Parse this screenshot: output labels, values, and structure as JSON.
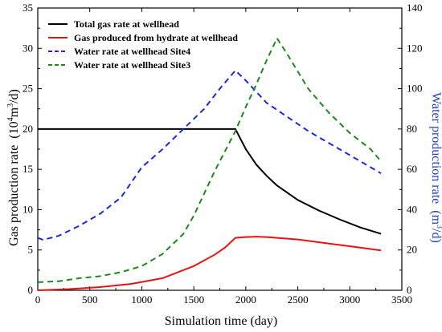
{
  "chart_data": {
    "type": "line",
    "xlabel": "Simulation time  (day)",
    "ylabel_left": "Gas production rate",
    "ylabel_left_unit_base": "(10",
    "ylabel_left_unit_exp": "4",
    "ylabel_left_unit_mid": "m",
    "ylabel_left_unit_exp2": "3",
    "ylabel_left_unit_end": "/d)",
    "ylabel_right": "Water production rate",
    "ylabel_right_unit_base": "(m",
    "ylabel_right_unit_exp": "3",
    "ylabel_right_unit_end": "/d)",
    "xlim": [
      0,
      3500
    ],
    "ylim_left": [
      0,
      35
    ],
    "ylim_right": [
      0,
      140
    ],
    "x_ticks": [
      0,
      500,
      1000,
      1500,
      2000,
      2500,
      3000,
      3500
    ],
    "y_left_ticks": [
      0,
      5,
      10,
      15,
      20,
      25,
      30,
      35
    ],
    "y_right_ticks": [
      0,
      20,
      40,
      60,
      80,
      100,
      120,
      140
    ],
    "legend_position": "top-left",
    "colors": {
      "axis_right_title": "#1f3dcc"
    },
    "series": [
      {
        "name": "Total gas rate at wellhead",
        "axis": "left",
        "color": "#000000",
        "dash": "solid",
        "points": [
          [
            0,
            20
          ],
          [
            500,
            20
          ],
          [
            1000,
            20
          ],
          [
            1500,
            20
          ],
          [
            1900,
            20
          ],
          [
            2000,
            17.5
          ],
          [
            2100,
            15.6
          ],
          [
            2200,
            14.2
          ],
          [
            2300,
            13.0
          ],
          [
            2500,
            11.2
          ],
          [
            2700,
            9.9
          ],
          [
            2900,
            8.8
          ],
          [
            3100,
            7.8
          ],
          [
            3300,
            7.0
          ]
        ]
      },
      {
        "name": "Gas produced from hydrate at wellhead",
        "axis": "left",
        "color": "#e8130f",
        "dash": "solid",
        "points": [
          [
            0,
            0
          ],
          [
            300,
            0.15
          ],
          [
            600,
            0.4
          ],
          [
            900,
            0.8
          ],
          [
            1200,
            1.5
          ],
          [
            1500,
            3.0
          ],
          [
            1700,
            4.4
          ],
          [
            1800,
            5.3
          ],
          [
            1900,
            6.5
          ],
          [
            2000,
            6.6
          ],
          [
            2100,
            6.65
          ],
          [
            2200,
            6.6
          ],
          [
            2500,
            6.3
          ],
          [
            2800,
            5.8
          ],
          [
            3100,
            5.3
          ],
          [
            3300,
            4.95
          ]
        ]
      },
      {
        "name": "Water rate at wellhead Site4",
        "axis": "right",
        "color": "#1a27e0",
        "dash": "dashed",
        "points": [
          [
            0,
            26
          ],
          [
            50,
            25
          ],
          [
            200,
            27
          ],
          [
            400,
            32
          ],
          [
            600,
            38
          ],
          [
            800,
            46
          ],
          [
            1000,
            61
          ],
          [
            1200,
            70
          ],
          [
            1400,
            80
          ],
          [
            1600,
            90
          ],
          [
            1750,
            100
          ],
          [
            1900,
            109
          ],
          [
            2000,
            104
          ],
          [
            2200,
            93
          ],
          [
            2400,
            86
          ],
          [
            2600,
            79
          ],
          [
            2800,
            73
          ],
          [
            3000,
            67
          ],
          [
            3200,
            61
          ],
          [
            3300,
            58
          ]
        ]
      },
      {
        "name": "Water rate at wellhead Site3",
        "axis": "right",
        "color": "#1a8a1a",
        "dash": "dashed",
        "points": [
          [
            0,
            4
          ],
          [
            200,
            4.5
          ],
          [
            400,
            6
          ],
          [
            600,
            7
          ],
          [
            800,
            9
          ],
          [
            1000,
            12
          ],
          [
            1200,
            18
          ],
          [
            1400,
            28
          ],
          [
            1500,
            37
          ],
          [
            1600,
            48
          ],
          [
            1700,
            59
          ],
          [
            1800,
            69
          ],
          [
            1900,
            79
          ],
          [
            2000,
            91
          ],
          [
            2100,
            102
          ],
          [
            2200,
            114
          ],
          [
            2300,
            125
          ],
          [
            2400,
            117
          ],
          [
            2600,
            100
          ],
          [
            2800,
            88
          ],
          [
            3000,
            78
          ],
          [
            3200,
            70
          ],
          [
            3300,
            64
          ]
        ]
      }
    ]
  }
}
